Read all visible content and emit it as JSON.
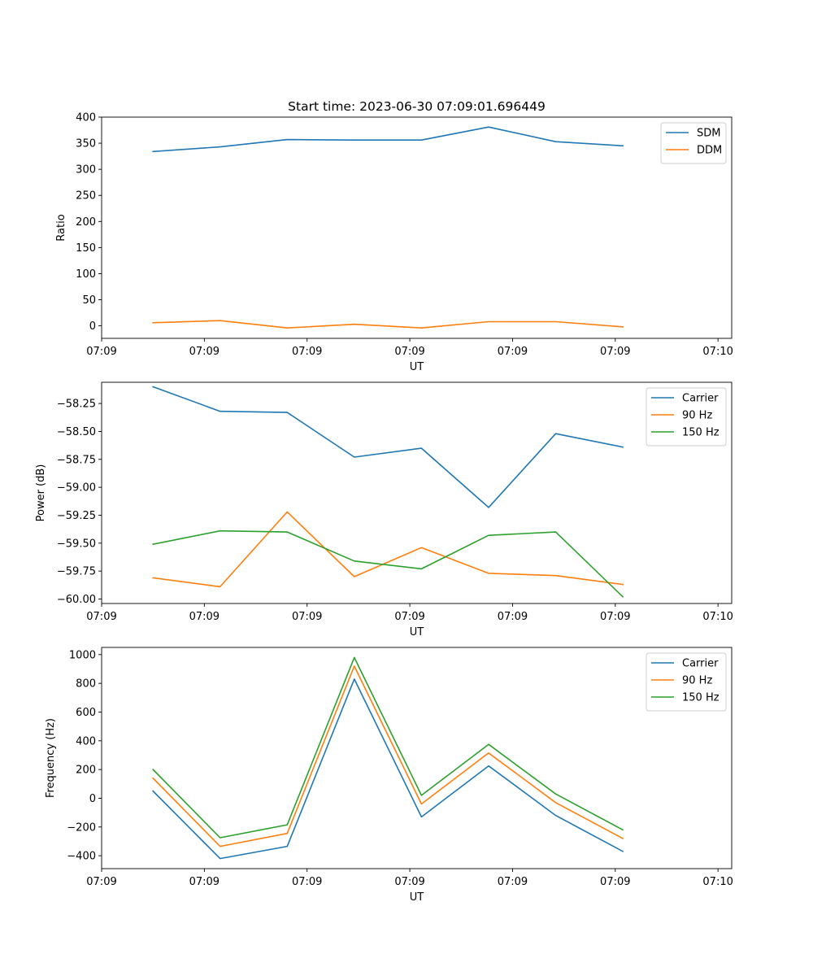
{
  "figure": {
    "title": "Start time: 2023-06-30 07:09:01.696449"
  },
  "chart_data": [
    {
      "type": "line",
      "title": "Start time: 2023-06-30 07:09:01.696449",
      "xlabel": "UT",
      "ylabel": "Ratio",
      "x_tick_labels": [
        "07:09",
        "07:09",
        "07:09",
        "07:09",
        "07:09",
        "07:09",
        "07:10"
      ],
      "xlim": [
        0,
        9.2
      ],
      "x_ticks": [
        0,
        1.5,
        3,
        4.5,
        6,
        7.5,
        9
      ],
      "x": [
        0.75,
        1.73,
        2.71,
        3.69,
        4.67,
        5.65,
        6.63,
        7.61
      ],
      "ylim": [
        -24,
        400
      ],
      "y_ticks": [
        0,
        50,
        100,
        150,
        200,
        250,
        300,
        350,
        400
      ],
      "legend_position": "upper right",
      "grid": false,
      "series": [
        {
          "name": "SDM",
          "color": "#1f77b4",
          "values": [
            334,
            343,
            357,
            356,
            356,
            381,
            353,
            345
          ]
        },
        {
          "name": "DDM",
          "color": "#ff7f0e",
          "values": [
            6,
            10,
            -4,
            3,
            -4,
            8,
            8,
            -2
          ]
        }
      ]
    },
    {
      "type": "line",
      "title": "",
      "xlabel": "UT",
      "ylabel": "Power (dB)",
      "x_tick_labels": [
        "07:09",
        "07:09",
        "07:09",
        "07:09",
        "07:09",
        "07:09",
        "07:10"
      ],
      "xlim": [
        0,
        9.2
      ],
      "x_ticks": [
        0,
        1.5,
        3,
        4.5,
        6,
        7.5,
        9
      ],
      "x": [
        0.75,
        1.73,
        2.71,
        3.69,
        4.67,
        5.65,
        6.63,
        7.61
      ],
      "ylim": [
        -60.04,
        -58.06
      ],
      "y_ticks": [
        -60.0,
        -59.75,
        -59.5,
        -59.25,
        -59.0,
        -58.75,
        -58.5,
        -58.25
      ],
      "y_tick_labels": [
        "−60.00",
        "−59.75",
        "−59.50",
        "−59.25",
        "−59.00",
        "−58.75",
        "−58.50",
        "−58.25"
      ],
      "legend_position": "upper right",
      "grid": false,
      "series": [
        {
          "name": "Carrier",
          "color": "#1f77b4",
          "values": [
            -58.1,
            -58.32,
            -58.33,
            -58.73,
            -58.65,
            -59.18,
            -58.52,
            -58.64
          ]
        },
        {
          "name": "90 Hz",
          "color": "#ff7f0e",
          "values": [
            -59.81,
            -59.89,
            -59.22,
            -59.8,
            -59.54,
            -59.77,
            -59.79,
            -59.87
          ]
        },
        {
          "name": "150 Hz",
          "color": "#2ca02c",
          "values": [
            -59.51,
            -59.39,
            -59.4,
            -59.66,
            -59.73,
            -59.43,
            -59.4,
            -59.98
          ]
        }
      ]
    },
    {
      "type": "line",
      "title": "",
      "xlabel": "UT",
      "ylabel": "Frequency (Hz)",
      "x_tick_labels": [
        "07:09",
        "07:09",
        "07:09",
        "07:09",
        "07:09",
        "07:09",
        "07:10"
      ],
      "xlim": [
        0,
        9.2
      ],
      "x_ticks": [
        0,
        1.5,
        3,
        4.5,
        6,
        7.5,
        9
      ],
      "x": [
        0.75,
        1.73,
        2.71,
        3.69,
        4.67,
        5.65,
        6.63,
        7.61
      ],
      "ylim": [
        -490,
        1050
      ],
      "y_ticks": [
        -400,
        -200,
        0,
        200,
        400,
        600,
        800,
        1000
      ],
      "y_tick_labels": [
        "−400",
        "−200",
        "0",
        "200",
        "400",
        "600",
        "800",
        "1000"
      ],
      "legend_position": "upper right",
      "grid": false,
      "series": [
        {
          "name": "Carrier",
          "color": "#1f77b4",
          "values": [
            50,
            -420,
            -335,
            830,
            -130,
            225,
            -120,
            -370
          ]
        },
        {
          "name": "90 Hz",
          "color": "#ff7f0e",
          "values": [
            140,
            -335,
            -245,
            920,
            -40,
            315,
            -30,
            -280
          ]
        },
        {
          "name": "150 Hz",
          "color": "#2ca02c",
          "values": [
            200,
            -275,
            -185,
            980,
            20,
            375,
            30,
            -220
          ]
        }
      ]
    }
  ]
}
